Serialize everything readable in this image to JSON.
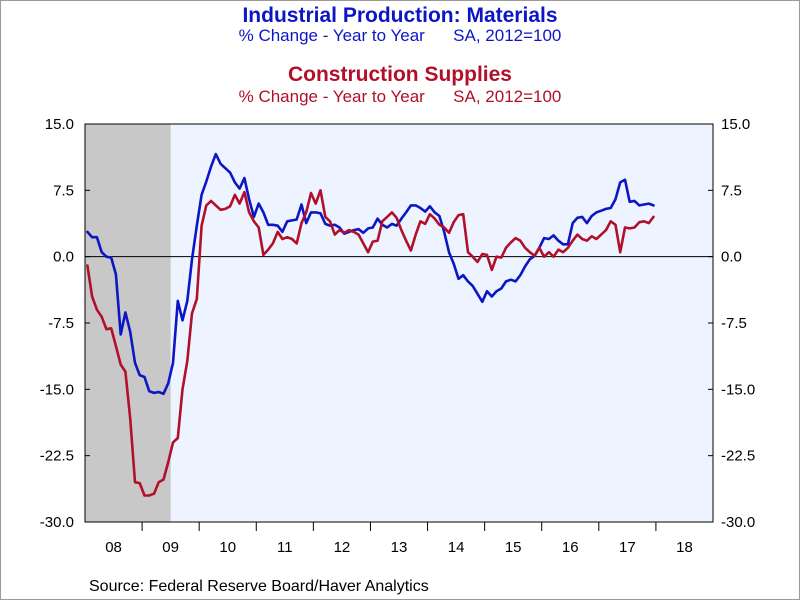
{
  "header": {
    "title1": "Industrial Production: Materials",
    "subtitle1_left": "% Change - Year to Year",
    "subtitle1_right": "SA, 2012=100",
    "title2": "Construction Supplies",
    "subtitle2_left": "% Change - Year to Year",
    "subtitle2_right": "SA, 2012=100"
  },
  "footer": {
    "source": "Source:  Federal Reserve Board/Haver Analytics"
  },
  "colors": {
    "series_blue": "#0d16c4",
    "series_red": "#b2102a",
    "plot_background": "#eef4ff",
    "recession_shade": "#c8c8c8"
  },
  "chart_data": {
    "type": "line",
    "title": "Industrial Production: Materials / Construction Supplies",
    "xlabel": "",
    "ylabel": "",
    "x_start": "2008-01",
    "frequency": "monthly",
    "xlim": [
      "2008-01",
      "2018-12"
    ],
    "ylim": [
      -30,
      15
    ],
    "y_ticks": [
      15.0,
      7.5,
      0.0,
      -7.5,
      -15.0,
      -22.5,
      -30.0
    ],
    "y_tick_labels": [
      "15.0",
      "7.5",
      "0.0",
      "-7.5",
      "-15.0",
      "-22.5",
      "-30.0"
    ],
    "y_axes": "left and right (mirrored)",
    "x_tick_labels": [
      "08",
      "09",
      "10",
      "11",
      "12",
      "13",
      "14",
      "15",
      "16",
      "17",
      "18"
    ],
    "x_tick_years": [
      2008,
      2009,
      2010,
      2011,
      2012,
      2013,
      2014,
      2015,
      2016,
      2017,
      2018
    ],
    "zero_line": true,
    "grid": false,
    "legend": "none",
    "shaded_regions": [
      {
        "label": "Recession",
        "start": "2008-01",
        "end": "2009-06"
      }
    ],
    "series": [
      {
        "name": "Industrial Production: Materials",
        "color": "#0d16c4",
        "values": [
          2.8,
          2.2,
          2.2,
          0.5,
          0.0,
          -0.1,
          -2.0,
          -8.8,
          -6.3,
          -8.5,
          -12.0,
          -13.4,
          -13.6,
          -15.2,
          -15.4,
          -15.3,
          -15.5,
          -14.3,
          -12.0,
          -5.0,
          -7.2,
          -5.0,
          -0.3,
          3.5,
          7.0,
          8.5,
          10.2,
          11.6,
          10.5,
          10.0,
          9.5,
          8.4,
          7.7,
          8.9,
          6.5,
          4.5,
          6.0,
          5.0,
          3.6,
          3.6,
          3.5,
          2.8,
          4.0,
          4.1,
          4.2,
          5.9,
          3.8,
          5.0,
          5.0,
          4.9,
          3.7,
          3.5,
          3.6,
          3.3,
          2.6,
          2.8,
          3.0,
          3.1,
          2.7,
          3.2,
          3.3,
          4.3,
          3.6,
          3.3,
          3.7,
          3.5,
          4.3,
          5.0,
          5.8,
          5.8,
          5.5,
          5.1,
          5.7,
          5.0,
          4.6,
          2.8,
          0.5,
          -0.8,
          -2.5,
          -2.1,
          -2.8,
          -3.3,
          -4.2,
          -5.1,
          -3.9,
          -4.5,
          -3.9,
          -3.6,
          -2.8,
          -2.6,
          -2.8,
          -2.1,
          -1.1,
          -0.3,
          0.1,
          1.0,
          2.1,
          2.0,
          2.4,
          1.8,
          1.4,
          1.4,
          3.8,
          4.4,
          4.5,
          3.8,
          4.6,
          5.0,
          5.2,
          5.4,
          5.5,
          6.5,
          8.4,
          8.7,
          6.2,
          6.3,
          5.8,
          5.9,
          6.0,
          5.8
        ]
      },
      {
        "name": "Construction Supplies",
        "color": "#b2102a",
        "values": [
          -1.0,
          -4.5,
          -6.0,
          -6.8,
          -8.2,
          -8.1,
          -10.1,
          -12.2,
          -13.0,
          -18.3,
          -25.5,
          -25.6,
          -27.0,
          -27.0,
          -26.8,
          -25.5,
          -25.2,
          -23.2,
          -21.0,
          -20.5,
          -15.0,
          -11.8,
          -6.4,
          -4.8,
          3.5,
          5.8,
          6.3,
          5.8,
          5.3,
          5.4,
          5.7,
          7.0,
          6.0,
          7.3,
          5.0,
          4.0,
          3.3,
          0.2,
          0.8,
          1.5,
          2.8,
          2.0,
          2.2,
          2.0,
          1.5,
          3.8,
          5.0,
          7.2,
          6.0,
          7.5,
          4.5,
          4.0,
          2.5,
          3.0,
          2.7,
          3.0,
          2.8,
          2.5,
          1.5,
          0.5,
          1.7,
          1.8,
          4.0,
          4.5,
          5.0,
          4.4,
          3.0,
          1.8,
          0.7,
          2.5,
          4.0,
          3.7,
          4.8,
          4.3,
          3.6,
          3.3,
          2.7,
          3.9,
          4.7,
          4.8,
          0.5,
          0.0,
          -0.6,
          0.3,
          0.2,
          -1.5,
          0.0,
          -0.1,
          1.0,
          1.6,
          2.1,
          1.8,
          1.0,
          0.5,
          0.1,
          1.0,
          0.0,
          0.5,
          0.0,
          0.8,
          0.5,
          1.0,
          1.8,
          2.5,
          2.0,
          1.8,
          2.3,
          2.0,
          2.5,
          3.0,
          4.0,
          3.6,
          0.5,
          3.3,
          3.2,
          3.3,
          3.9,
          4.0,
          3.8,
          4.5
        ]
      }
    ]
  }
}
